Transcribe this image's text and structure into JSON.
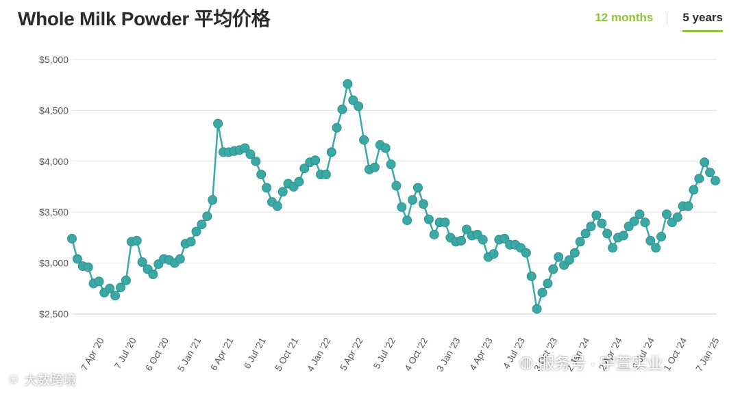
{
  "title": "Whole Milk Powder 平均价格",
  "tabs": {
    "months12": "12 months",
    "years5": "5 years",
    "active": "5 years"
  },
  "colors": {
    "line": "#3aa9a5",
    "accent": "#8fc23d",
    "grid": "#e3e3e3",
    "text": "#555555"
  },
  "watermark": {
    "left": "大数跨境",
    "right": "服务号 · 宇萱实业"
  },
  "chart_data": {
    "type": "line",
    "title": "Whole Milk Powder 平均价格",
    "xlabel": "",
    "ylabel": "",
    "ylim": [
      2500,
      5000
    ],
    "yticks": [
      2500,
      3000,
      3500,
      4000,
      4500,
      5000
    ],
    "ytick_labels": [
      "$2,500",
      "$3,000",
      "$3,500",
      "$4,000",
      "$4,500",
      "$5,000"
    ],
    "grid": true,
    "xtick_labels": [
      "7 Apr '20",
      "7 Jul '20",
      "6 Oct '20",
      "5 Jan '21",
      "6 Apr '21",
      "6 Jul '21",
      "5 Oct '21",
      "4 Jan '22",
      "5 Apr '22",
      "5 Jul '22",
      "4 Oct '22",
      "3 Jan '23",
      "4 Apr '23",
      "4 Jul '23",
      "3 Oct '23",
      "2 Jan '24",
      "2 Apr '24",
      "2 Jul '24",
      "1 Oct '24",
      "7 Jan '25"
    ],
    "series": [
      {
        "values": [
          3240,
          3040,
          2970,
          2960,
          2800,
          2820,
          2710,
          2750,
          2680,
          2760,
          2830,
          3210,
          3220,
          3010,
          2940,
          2890,
          2990,
          3040,
          3030,
          3000,
          3040,
          3190,
          3210,
          3310,
          3380,
          3460,
          3620,
          4370,
          4090,
          4090,
          4100,
          4110,
          4130,
          4070,
          4000,
          3870,
          3740,
          3600,
          3560,
          3700,
          3780,
          3750,
          3800,
          3930,
          3990,
          4010,
          3870,
          3870,
          4090,
          4330,
          4510,
          4760,
          4600,
          4540,
          4210,
          3920,
          3940,
          4160,
          4130,
          3970,
          3760,
          3550,
          3420,
          3620,
          3740,
          3580,
          3430,
          3280,
          3400,
          3400,
          3250,
          3210,
          3220,
          3330,
          3270,
          3280,
          3230,
          3060,
          3090,
          3230,
          3240,
          3180,
          3180,
          3150,
          3100,
          2870,
          2550,
          2710,
          2800,
          2940,
          3060,
          2980,
          3030,
          3100,
          3210,
          3290,
          3360,
          3470,
          3390,
          3290,
          3150,
          3250,
          3270,
          3360,
          3410,
          3480,
          3400,
          3220,
          3150,
          3260,
          3480,
          3400,
          3450,
          3560,
          3560,
          3720,
          3830,
          3990,
          3890,
          3810
        ]
      }
    ]
  }
}
